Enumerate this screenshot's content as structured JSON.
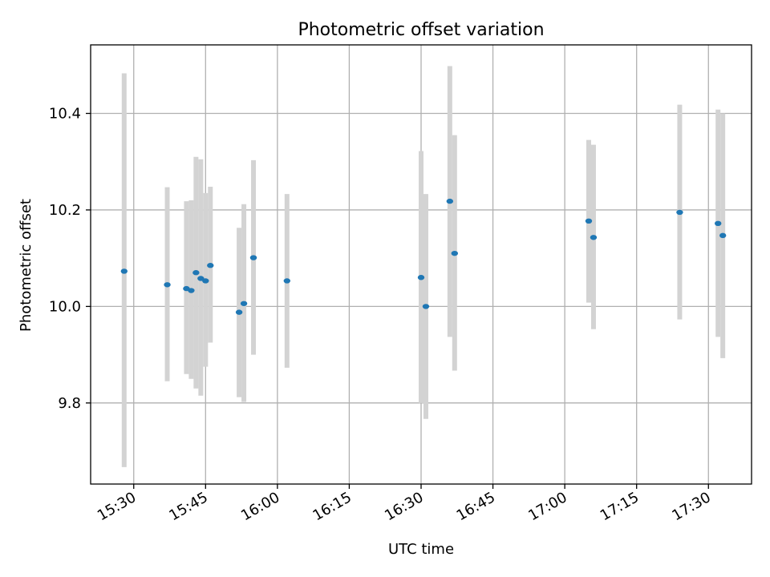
{
  "chart_data": {
    "type": "scatter",
    "title": "Photometric offset variation",
    "xlabel": "UTC time",
    "ylabel": "Photometric offset",
    "xlim": [
      "15:21",
      "17:39"
    ],
    "ylim": [
      9.632,
      10.542
    ],
    "grid": true,
    "x_ticks": [
      "15:30",
      "15:45",
      "16:00",
      "16:15",
      "16:30",
      "16:45",
      "17:00",
      "17:15",
      "17:30"
    ],
    "y_ticks": [
      "9.8",
      "10.0",
      "10.2",
      "10.4"
    ],
    "colors": {
      "point": "#1f77b4",
      "errorbar": "#d3d3d3",
      "grid": "#b0b0b0"
    },
    "points": [
      {
        "t": "15:28",
        "y": 10.073,
        "ylo": 9.667,
        "yhi": 10.483
      },
      {
        "t": "15:37",
        "y": 10.045,
        "ylo": 9.845,
        "yhi": 10.247
      },
      {
        "t": "15:41",
        "y": 10.037,
        "ylo": 9.86,
        "yhi": 10.218
      },
      {
        "t": "15:42",
        "y": 10.033,
        "ylo": 9.85,
        "yhi": 10.22
      },
      {
        "t": "15:43",
        "y": 10.07,
        "ylo": 9.83,
        "yhi": 10.31
      },
      {
        "t": "15:44",
        "y": 10.058,
        "ylo": 9.815,
        "yhi": 10.305
      },
      {
        "t": "15:45",
        "y": 10.053,
        "ylo": 9.875,
        "yhi": 10.235
      },
      {
        "t": "15:46",
        "y": 10.085,
        "ylo": 9.925,
        "yhi": 10.248
      },
      {
        "t": "15:52",
        "y": 9.988,
        "ylo": 9.812,
        "yhi": 10.163
      },
      {
        "t": "15:53",
        "y": 10.006,
        "ylo": 9.802,
        "yhi": 10.212
      },
      {
        "t": "15:55",
        "y": 10.101,
        "ylo": 9.9,
        "yhi": 10.303
      },
      {
        "t": "16:02",
        "y": 10.053,
        "ylo": 9.873,
        "yhi": 10.233
      },
      {
        "t": "16:30",
        "y": 10.06,
        "ylo": 9.8,
        "yhi": 10.322
      },
      {
        "t": "16:31",
        "y": 10.0,
        "ylo": 9.767,
        "yhi": 10.233
      },
      {
        "t": "16:36",
        "y": 10.218,
        "ylo": 9.937,
        "yhi": 10.498
      },
      {
        "t": "16:37",
        "y": 10.11,
        "ylo": 9.867,
        "yhi": 10.355
      },
      {
        "t": "17:05",
        "y": 10.177,
        "ylo": 10.008,
        "yhi": 10.345
      },
      {
        "t": "17:06",
        "y": 10.143,
        "ylo": 9.953,
        "yhi": 10.335
      },
      {
        "t": "17:24",
        "y": 10.195,
        "ylo": 9.973,
        "yhi": 10.418
      },
      {
        "t": "17:32",
        "y": 10.172,
        "ylo": 9.937,
        "yhi": 10.408
      },
      {
        "t": "17:33",
        "y": 10.147,
        "ylo": 9.893,
        "yhi": 10.4
      }
    ]
  }
}
